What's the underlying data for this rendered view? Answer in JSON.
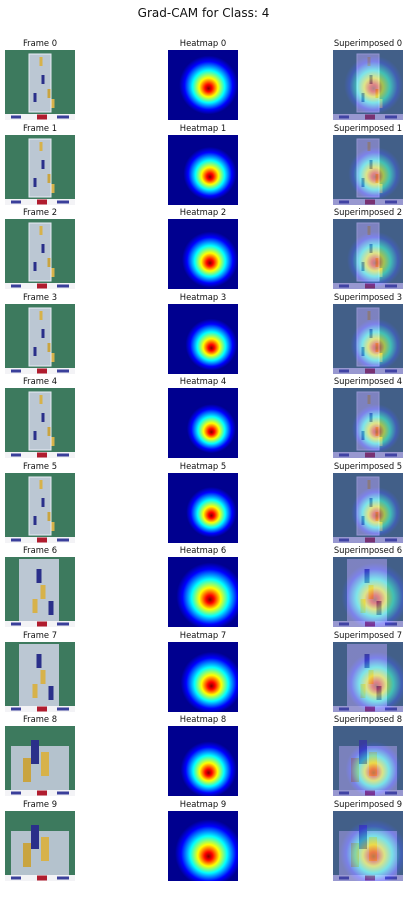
{
  "figure": {
    "title": "Grad-CAM for Class: 4"
  },
  "rows": [
    {
      "frame_label": "Frame 0",
      "heatmap_label": "Heatmap 0",
      "superimposed_label": "Superimposed 0",
      "hot_x": 0.58,
      "hot_y": 0.5,
      "hot_r": 0.42,
      "zoom": 0
    },
    {
      "frame_label": "Frame 1",
      "heatmap_label": "Heatmap 1",
      "superimposed_label": "Superimposed 1",
      "hot_x": 0.6,
      "hot_y": 0.55,
      "hot_r": 0.38,
      "zoom": 0
    },
    {
      "frame_label": "Frame 2",
      "heatmap_label": "Heatmap 2",
      "superimposed_label": "Superimposed 2",
      "hot_x": 0.6,
      "hot_y": 0.58,
      "hot_r": 0.4,
      "zoom": 0
    },
    {
      "frame_label": "Frame 3",
      "heatmap_label": "Heatmap 3",
      "superimposed_label": "Superimposed 3",
      "hot_x": 0.62,
      "hot_y": 0.58,
      "hot_r": 0.37,
      "zoom": 0
    },
    {
      "frame_label": "Frame 4",
      "heatmap_label": "Heatmap 4",
      "superimposed_label": "Superimposed 4",
      "hot_x": 0.62,
      "hot_y": 0.58,
      "hot_r": 0.35,
      "zoom": 0
    },
    {
      "frame_label": "Frame 5",
      "heatmap_label": "Heatmap 5",
      "superimposed_label": "Superimposed 5",
      "hot_x": 0.62,
      "hot_y": 0.56,
      "hot_r": 0.36,
      "zoom": 0
    },
    {
      "frame_label": "Frame 6",
      "heatmap_label": "Heatmap 6",
      "superimposed_label": "Superimposed 6",
      "hot_x": 0.6,
      "hot_y": 0.56,
      "hot_r": 0.48,
      "zoom": 1
    },
    {
      "frame_label": "Frame 7",
      "heatmap_label": "Heatmap 7",
      "superimposed_label": "Superimposed 7",
      "hot_x": 0.62,
      "hot_y": 0.58,
      "hot_r": 0.44,
      "zoom": 1
    },
    {
      "frame_label": "Frame 8",
      "heatmap_label": "Heatmap 8",
      "superimposed_label": "Superimposed 8",
      "hot_x": 0.58,
      "hot_y": 0.62,
      "hot_r": 0.4,
      "zoom": 2
    },
    {
      "frame_label": "Frame 9",
      "heatmap_label": "Heatmap 9",
      "superimposed_label": "Superimposed 9",
      "hot_x": 0.58,
      "hot_y": 0.6,
      "hot_r": 0.48,
      "zoom": 2
    }
  ],
  "colors": {
    "jet_dark": "#00008f",
    "jet_blue": "#0000ff",
    "jet_cyan": "#00ffff",
    "jet_yellow": "#ffff00",
    "jet_red": "#ff0000",
    "jet_darkred": "#800000",
    "field_green": "#3d7a5e",
    "pitch": "#c9cfe0"
  }
}
